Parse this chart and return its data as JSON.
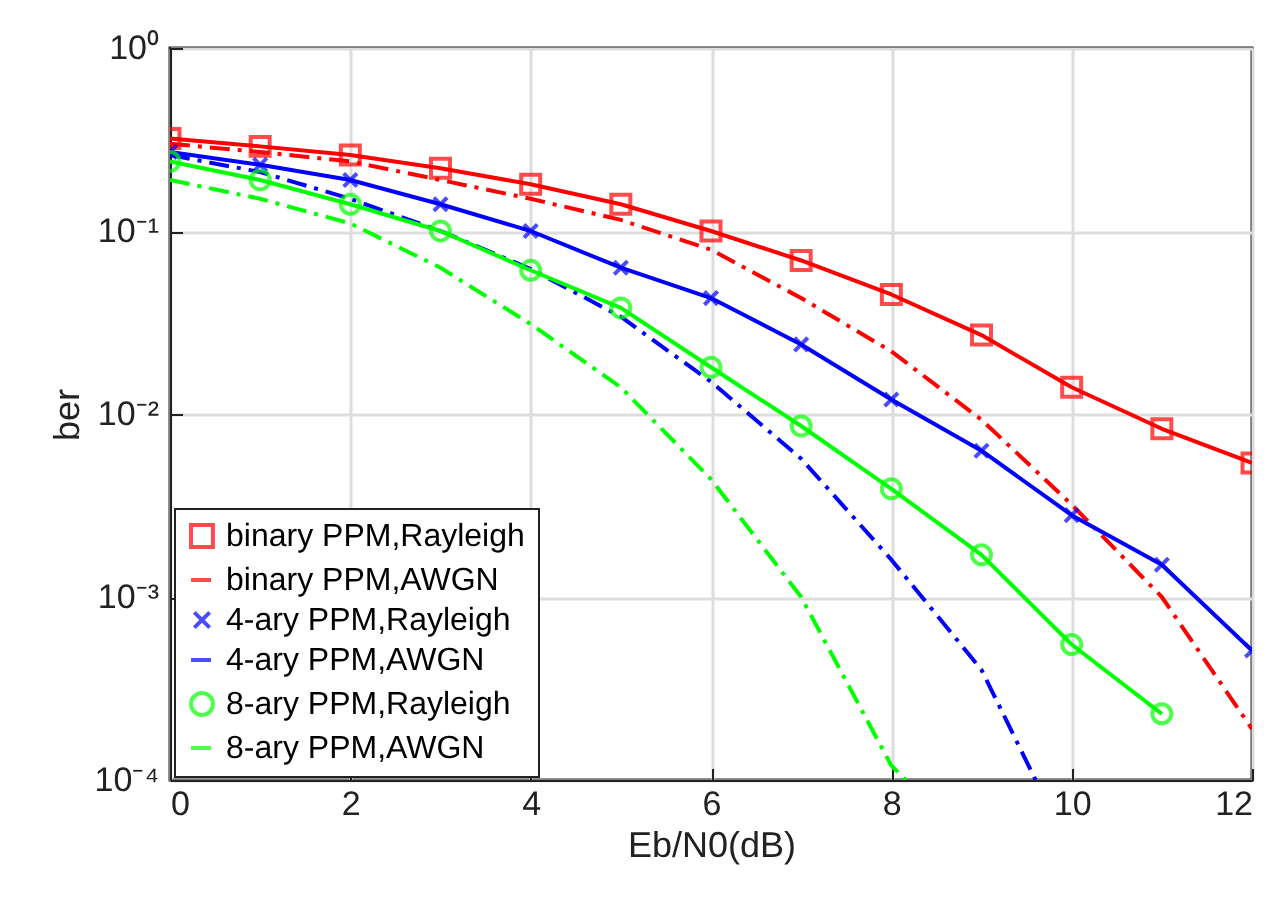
{
  "chart_data": {
    "type": "line",
    "xlabel": "Eb/N0(dB)",
    "ylabel": "ber",
    "log": "y",
    "grid": true,
    "legend": "bottom left",
    "x": [
      0,
      1,
      2,
      3,
      4,
      5,
      6,
      7,
      8,
      9,
      10,
      11,
      12
    ],
    "xlim": [
      0,
      12
    ],
    "xticks": [
      0,
      2,
      4,
      6,
      8,
      10,
      12
    ],
    "ylim": [
      0.0001,
      1
    ],
    "yticks": [
      {
        "value": 0.0001,
        "label": "10⁻⁴"
      },
      {
        "value": 0.001,
        "label": "10⁻³"
      },
      {
        "value": 0.01,
        "label": "10⁻²"
      },
      {
        "value": 0.1,
        "label": "10⁻¹"
      },
      {
        "value": 1,
        "label": "10⁰"
      }
    ],
    "series": [
      {
        "name": "binary PPM,Rayleigh",
        "color": "#ff0000",
        "marker": "square",
        "line_style": "solid",
        "values": [
          0.32,
          0.29,
          0.26,
          0.22,
          0.18,
          0.14,
          0.1,
          0.069,
          0.045,
          0.027,
          0.014,
          0.0083,
          0.0054
        ]
      },
      {
        "name": "binary PPM,AWGN",
        "color": "#ff0000",
        "marker": "none",
        "line_style": "dashed",
        "values": [
          0.3,
          0.27,
          0.24,
          0.19,
          0.15,
          0.115,
          0.079,
          0.043,
          0.022,
          0.0093,
          0.0032,
          0.001,
          0.00019
        ]
      },
      {
        "name": "4-ary PPM,Rayleigh",
        "color": "#0000ff",
        "marker": "cross",
        "line_style": "solid",
        "values": [
          0.27,
          0.23,
          0.19,
          0.14,
          0.1,
          0.063,
          0.043,
          0.024,
          0.012,
          0.0063,
          0.0028,
          0.0015,
          0.00051
        ]
      },
      {
        "name": "4-ary PPM,AWGN",
        "color": "#0000ff",
        "marker": "none",
        "line_style": "dashed",
        "x": [
          0,
          1,
          2,
          3,
          4,
          5,
          6,
          7,
          8,
          9,
          9.6
        ],
        "values": [
          0.26,
          0.21,
          0.15,
          0.1,
          0.062,
          0.034,
          0.015,
          0.0057,
          0.0016,
          0.0004,
          0.0001
        ]
      },
      {
        "name": "8-ary PPM,Rayleigh",
        "color": "#00ff00",
        "marker": "circle",
        "line_style": "solid",
        "values": [
          0.24,
          0.19,
          0.14,
          0.1,
          0.061,
          0.038,
          0.018,
          0.0086,
          0.0039,
          0.0017,
          0.00055,
          0.00023,
          null
        ]
      },
      {
        "name": "8-ary PPM,AWGN",
        "color": "#00ff00",
        "marker": "none",
        "line_style": "dashed",
        "x": [
          0,
          1,
          2,
          3,
          4,
          5,
          6,
          7,
          8,
          8.16
        ],
        "values": [
          0.19,
          0.15,
          0.11,
          0.063,
          0.031,
          0.014,
          0.0044,
          0.001,
          0.00012,
          0.0001
        ]
      }
    ]
  }
}
